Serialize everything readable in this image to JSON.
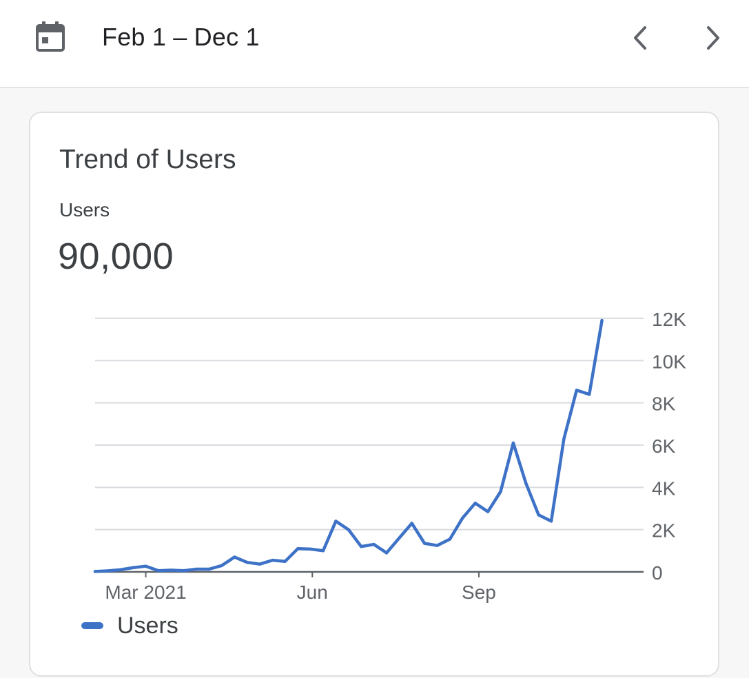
{
  "header": {
    "date_range": "Feb 1 – Dec 1",
    "calendar_icon": "calendar-icon",
    "prev_icon": "chevron-left-icon",
    "next_icon": "chevron-right-icon"
  },
  "card": {
    "title": "Trend of Users",
    "metric_label": "Users",
    "metric_value": "90,000"
  },
  "colors": {
    "series": "#3d72c7",
    "grid": "#dadce0",
    "axis": "#5f6368",
    "text": "#3c4043"
  },
  "chart_data": {
    "type": "line",
    "title": "Trend of Users",
    "xlabel": "",
    "ylabel": "",
    "x_tick_labels": [
      "Mar 2021",
      "Jun",
      "Sep"
    ],
    "y_tick_labels": [
      "0",
      "2K",
      "4K",
      "6K",
      "8K",
      "10K",
      "12K"
    ],
    "ylim": [
      0,
      12000
    ],
    "grid": true,
    "y_axis_side": "right",
    "legend": "bottom-left",
    "series": [
      {
        "name": "Users",
        "x": [
          "2021-02-01",
          "2021-02-08",
          "2021-02-15",
          "2021-02-22",
          "2021-03-01",
          "2021-03-08",
          "2021-03-15",
          "2021-03-22",
          "2021-03-29",
          "2021-04-05",
          "2021-04-12",
          "2021-04-19",
          "2021-04-26",
          "2021-05-03",
          "2021-05-10",
          "2021-05-17",
          "2021-05-24",
          "2021-05-31",
          "2021-06-07",
          "2021-06-14",
          "2021-06-21",
          "2021-06-28",
          "2021-07-05",
          "2021-07-12",
          "2021-07-19",
          "2021-07-26",
          "2021-08-02",
          "2021-08-09",
          "2021-08-16",
          "2021-08-23",
          "2021-08-30",
          "2021-09-06",
          "2021-09-13",
          "2021-09-20",
          "2021-09-27",
          "2021-10-04",
          "2021-10-11",
          "2021-10-18",
          "2021-10-25",
          "2021-11-01",
          "2021-11-08"
        ],
        "values": [
          20,
          50,
          100,
          200,
          270,
          60,
          80,
          60,
          130,
          130,
          300,
          700,
          450,
          370,
          550,
          500,
          1100,
          1080,
          1000,
          2400,
          2000,
          1200,
          1300,
          900,
          1600,
          2300,
          1350,
          1250,
          1550,
          2550,
          3250,
          2850,
          3800,
          6100,
          4200,
          2700,
          2400,
          6300,
          8600,
          8400,
          11900
        ]
      }
    ]
  },
  "legend": {
    "label": "Users"
  }
}
